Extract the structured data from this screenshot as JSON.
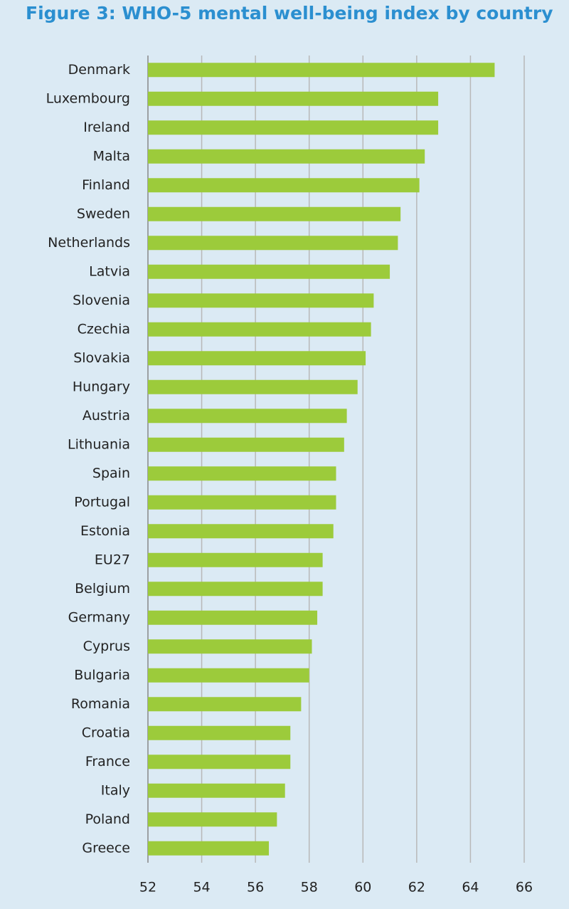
{
  "chart_data": {
    "type": "hbar",
    "title": "Figure 3: WHO-5 mental well-being index by country",
    "categories": [
      "Denmark",
      "Luxembourg",
      "Ireland",
      "Malta",
      "Finland",
      "Sweden",
      "Netherlands",
      "Latvia",
      "Slovenia",
      "Czechia",
      "Slovakia",
      "Hungary",
      "Austria",
      "Lithuania",
      "Spain",
      "Portugal",
      "Estonia",
      "EU27",
      "Belgium",
      "Germany",
      "Cyprus",
      "Bulgaria",
      "Romania",
      "Croatia",
      "France",
      "Italy",
      "Poland",
      "Greece"
    ],
    "values": [
      64.9,
      62.8,
      62.8,
      62.3,
      62.1,
      61.4,
      61.3,
      61.0,
      60.4,
      60.3,
      60.1,
      59.8,
      59.4,
      59.3,
      59.0,
      59.0,
      58.9,
      58.5,
      58.5,
      58.3,
      58.1,
      58.0,
      57.7,
      57.3,
      57.3,
      57.1,
      56.8,
      56.5
    ],
    "color": "#9ccb3b",
    "xlim": [
      52,
      66
    ],
    "xticks": [
      52,
      54,
      56,
      58,
      60,
      62,
      64,
      66
    ],
    "grid": true
  }
}
